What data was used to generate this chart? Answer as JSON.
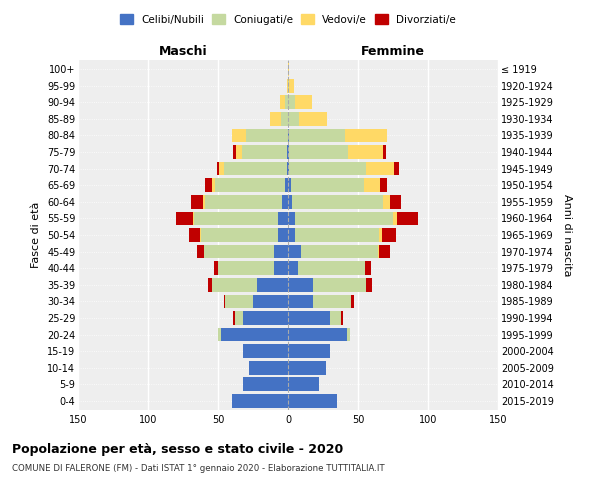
{
  "age_groups": [
    "0-4",
    "5-9",
    "10-14",
    "15-19",
    "20-24",
    "25-29",
    "30-34",
    "35-39",
    "40-44",
    "45-49",
    "50-54",
    "55-59",
    "60-64",
    "65-69",
    "70-74",
    "75-79",
    "80-84",
    "85-89",
    "90-94",
    "95-99",
    "100+"
  ],
  "birth_years": [
    "2015-2019",
    "2010-2014",
    "2005-2009",
    "2000-2004",
    "1995-1999",
    "1990-1994",
    "1985-1989",
    "1980-1984",
    "1975-1979",
    "1970-1974",
    "1965-1969",
    "1960-1964",
    "1955-1959",
    "1950-1954",
    "1945-1949",
    "1940-1944",
    "1935-1939",
    "1930-1934",
    "1925-1929",
    "1920-1924",
    "≤ 1919"
  ],
  "colors": {
    "celibi": "#4472c4",
    "coniugati": "#c5d9a0",
    "vedovi": "#ffd966",
    "divorziati": "#c00000"
  },
  "maschi": {
    "celibi": [
      40,
      32,
      28,
      32,
      48,
      32,
      25,
      22,
      10,
      10,
      7,
      7,
      4,
      2,
      1,
      1,
      0,
      0,
      0,
      0,
      0
    ],
    "coniugati": [
      0,
      0,
      0,
      0,
      2,
      6,
      20,
      32,
      40,
      50,
      55,
      60,
      55,
      50,
      45,
      32,
      30,
      5,
      2,
      0,
      0
    ],
    "vedovi": [
      0,
      0,
      0,
      0,
      0,
      0,
      0,
      0,
      0,
      0,
      1,
      1,
      2,
      2,
      3,
      4,
      10,
      8,
      4,
      1,
      0
    ],
    "divorziati": [
      0,
      0,
      0,
      0,
      0,
      1,
      1,
      3,
      3,
      5,
      8,
      12,
      8,
      5,
      2,
      2,
      0,
      0,
      0,
      0,
      0
    ]
  },
  "femmine": {
    "celibi": [
      35,
      22,
      27,
      30,
      42,
      30,
      18,
      18,
      7,
      9,
      5,
      5,
      3,
      2,
      1,
      1,
      1,
      0,
      0,
      0,
      0
    ],
    "coniugati": [
      0,
      0,
      0,
      0,
      2,
      8,
      27,
      38,
      48,
      55,
      60,
      70,
      65,
      52,
      55,
      42,
      40,
      8,
      5,
      1,
      0
    ],
    "vedovi": [
      0,
      0,
      0,
      0,
      0,
      0,
      0,
      0,
      0,
      1,
      2,
      3,
      5,
      12,
      20,
      25,
      30,
      20,
      12,
      3,
      1
    ],
    "divorziati": [
      0,
      0,
      0,
      0,
      0,
      1,
      2,
      4,
      4,
      8,
      10,
      15,
      8,
      5,
      3,
      2,
      0,
      0,
      0,
      0,
      0
    ]
  },
  "xlim": 150,
  "title": "Popolazione per età, sesso e stato civile - 2020",
  "subtitle": "COMUNE DI FALERONE (FM) - Dati ISTAT 1° gennaio 2020 - Elaborazione TUTTITALIA.IT",
  "ylabel_left": "Fasce di età",
  "ylabel_right": "Anni di nascita",
  "header_maschi": "Maschi",
  "header_femmine": "Femmine",
  "bg_color": "#ffffff",
  "plot_bg": "#eeeeee",
  "grid_color": "#ffffff",
  "legend_labels": [
    "Celibi/Nubili",
    "Coniugati/e",
    "Vedovi/e",
    "Divorziati/e"
  ]
}
